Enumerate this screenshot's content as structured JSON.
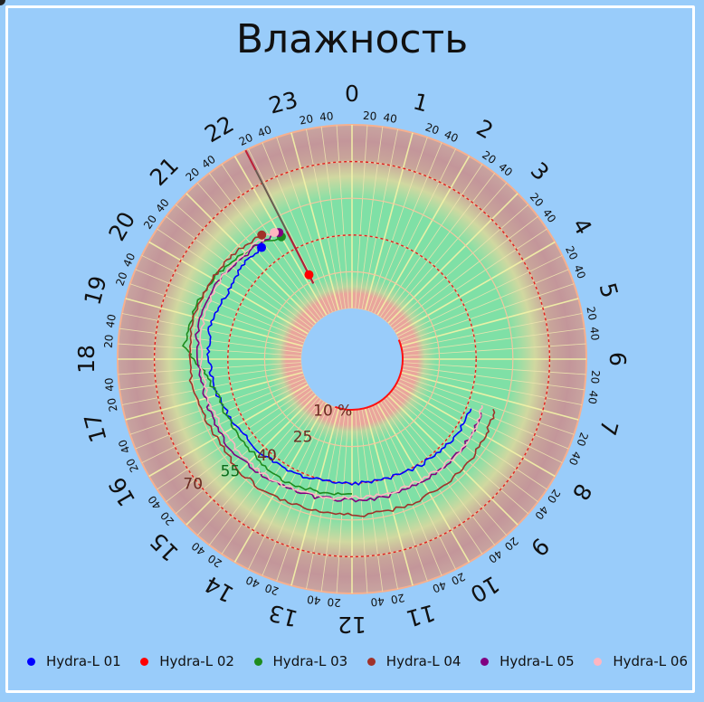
{
  "title": "Влажность",
  "chart_data": {
    "type": "polar-line",
    "angular_axis": {
      "labels": [
        "0",
        "1",
        "2",
        "3",
        "4",
        "5",
        "6",
        "7",
        "8",
        "9",
        "10",
        "11",
        "12",
        "13",
        "14",
        "15",
        "16",
        "17",
        "18",
        "19",
        "20",
        "21",
        "22",
        "23"
      ],
      "sub_tick_labels": [
        "20",
        "40"
      ]
    },
    "radial_axis": {
      "range": [
        10,
        85
      ],
      "unit": "%",
      "labels": [
        {
          "value": 10,
          "text": "10 %"
        },
        {
          "value": 25,
          "text": "25"
        },
        {
          "value": 40,
          "text": "40"
        },
        {
          "value": 55,
          "text": "55"
        },
        {
          "value": 70,
          "text": "70"
        }
      ],
      "thresholds": [
        40,
        70
      ]
    },
    "current_time_hour": 22.2,
    "series": [
      {
        "name": "Hydra-L 01",
        "color": "#0000ff",
        "points": [
          [
            7.5,
            42
          ],
          [
            8.5,
            42
          ],
          [
            9.5,
            41
          ],
          [
            10.5,
            40
          ],
          [
            11.5,
            40
          ],
          [
            12.5,
            40
          ],
          [
            13.5,
            41
          ],
          [
            14.5,
            42
          ],
          [
            15.5,
            43
          ],
          [
            16.5,
            45
          ],
          [
            17.5,
            47
          ],
          [
            18.2,
            48
          ],
          [
            19.0,
            49
          ],
          [
            19.8,
            47
          ],
          [
            20.6,
            48
          ],
          [
            21.4,
            48
          ]
        ]
      },
      {
        "name": "Hydra-L 02",
        "color": "#ff0000",
        "points": [
          [
            22.2,
            28
          ]
        ]
      },
      {
        "name": "Hydra-L 03",
        "color": "#1e8c1e",
        "points": [
          [
            12.0,
            45
          ],
          [
            13.0,
            45
          ],
          [
            14.0,
            46
          ],
          [
            15.0,
            45
          ],
          [
            16.0,
            45
          ],
          [
            17.0,
            46
          ],
          [
            17.7,
            50
          ],
          [
            18.3,
            58
          ],
          [
            19.0,
            57
          ],
          [
            20.0,
            55
          ],
          [
            21.0,
            51
          ],
          [
            22.0,
            47
          ]
        ]
      },
      {
        "name": "Hydra-L 04",
        "color": "#a0322a",
        "points": [
          [
            7.3,
            51
          ],
          [
            8.0,
            52
          ],
          [
            9.0,
            53
          ],
          [
            10.0,
            53
          ],
          [
            11.0,
            53
          ],
          [
            12.0,
            53
          ],
          [
            13.0,
            53
          ],
          [
            14.0,
            54
          ],
          [
            15.0,
            54
          ],
          [
            16.0,
            53
          ],
          [
            17.0,
            55
          ],
          [
            18.0,
            56
          ],
          [
            19.0,
            56
          ],
          [
            20.0,
            55
          ],
          [
            20.8,
            54
          ],
          [
            21.6,
            52
          ]
        ]
      },
      {
        "name": "Hydra-L 05",
        "color": "#800080",
        "points": [
          [
            7.5,
            47
          ],
          [
            8.5,
            47
          ],
          [
            9.5,
            47
          ],
          [
            10.5,
            47
          ],
          [
            11.5,
            47
          ],
          [
            12.5,
            47
          ],
          [
            13.5,
            48
          ],
          [
            14.5,
            49
          ],
          [
            15.5,
            51
          ],
          [
            16.5,
            51
          ],
          [
            17.2,
            51
          ],
          [
            18.0,
            52
          ],
          [
            19.0,
            54
          ],
          [
            20.0,
            53
          ],
          [
            21.0,
            50
          ],
          [
            22.0,
            49
          ]
        ]
      },
      {
        "name": "Hydra-L 06",
        "color": "#ffb6c1",
        "points": [
          [
            7.3,
            46
          ],
          [
            8.0,
            47
          ],
          [
            9.0,
            47
          ],
          [
            10.0,
            46
          ],
          [
            11.0,
            46
          ],
          [
            12.0,
            46
          ],
          [
            13.0,
            47
          ],
          [
            14.0,
            48
          ],
          [
            15.0,
            49
          ],
          [
            16.0,
            49
          ],
          [
            17.0,
            50
          ],
          [
            18.0,
            51
          ],
          [
            19.0,
            52
          ],
          [
            20.0,
            52
          ],
          [
            21.0,
            51
          ],
          [
            21.9,
            50
          ]
        ]
      }
    ],
    "legend_position": "bottom"
  }
}
